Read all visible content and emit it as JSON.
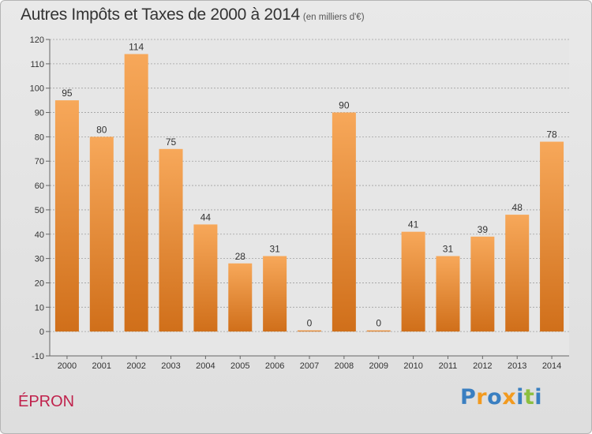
{
  "page": {
    "place_name": "ÉPRON"
  },
  "logo": {
    "text": "Proxiti",
    "letters": [
      {
        "ch": "P",
        "color": "#3a7fc1"
      },
      {
        "ch": "r",
        "color": "#f29a1f"
      },
      {
        "ch": "o",
        "color": "#3a7fc1"
      },
      {
        "ch": "x",
        "color": "#f29a1f"
      },
      {
        "ch": "i",
        "color": "#3a7fc1"
      },
      {
        "ch": "t",
        "color": "#8cbf3f"
      },
      {
        "ch": "i",
        "color": "#3a7fc1"
      }
    ]
  },
  "colors": {
    "bar_light": "#f7a85a",
    "bar_dark": "#d06f1a",
    "plot_bg": "#e6e6e6",
    "grid": "#a0a0a0"
  },
  "chart_data": {
    "type": "bar",
    "title": "Autres Impôts et Taxes de 2000 à 2014",
    "subtitle": "(en milliers d'€)",
    "xlabel": "",
    "ylabel": "",
    "categories": [
      "2000",
      "2001",
      "2002",
      "2003",
      "2004",
      "2005",
      "2006",
      "2007",
      "2008",
      "2009",
      "2010",
      "2011",
      "2012",
      "2013",
      "2014"
    ],
    "values": [
      95,
      80,
      114,
      75,
      44,
      28,
      31,
      0,
      90,
      0,
      41,
      31,
      39,
      48,
      78
    ],
    "ylim": [
      -10,
      120
    ],
    "yticks": [
      -10,
      0,
      10,
      20,
      30,
      40,
      50,
      60,
      70,
      80,
      90,
      100,
      110,
      120
    ],
    "grid": true,
    "grid_style": "dashed-horizontal",
    "legend": "none"
  }
}
